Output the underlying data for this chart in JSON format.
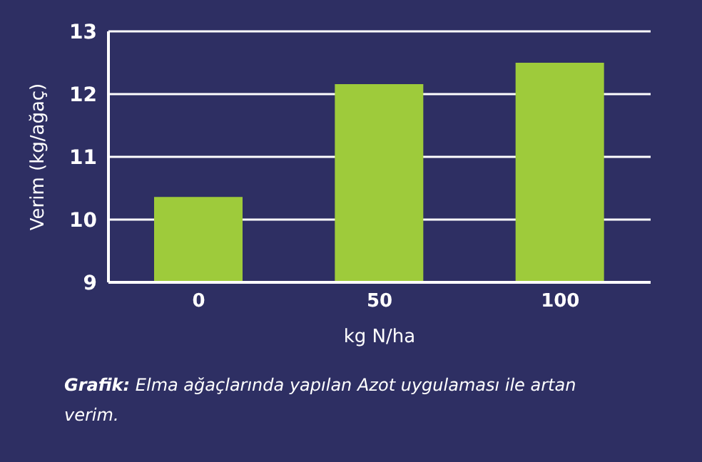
{
  "chart_data": {
    "type": "bar",
    "categories": [
      "0",
      "50",
      "100"
    ],
    "values": [
      10.36,
      12.16,
      12.5
    ],
    "color": "#9ecb3b",
    "xlabel": "kg N/ha",
    "ylabel": "Verim (kg/ağaç)",
    "ylim": [
      9,
      13
    ],
    "yticks": [
      9,
      10,
      11,
      12,
      13
    ],
    "grid": "y",
    "annotations": [
      "Grafik: Elma ağaçlarında yapılan Azot uygulaması ile artan verim."
    ]
  }
}
